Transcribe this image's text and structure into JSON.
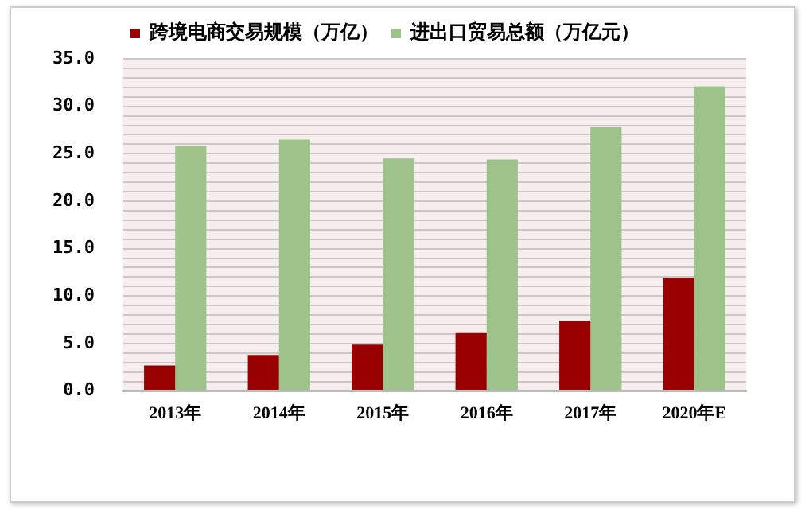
{
  "chart_data": {
    "type": "bar",
    "categories": [
      "2013年",
      "2014年",
      "2015年",
      "2016年",
      "2017年",
      "2020年E"
    ],
    "series": [
      {
        "name": "跨境电商交易规模（万亿）",
        "color": "#990000",
        "values": [
          2.7,
          3.8,
          4.9,
          6.1,
          7.4,
          11.9
        ]
      },
      {
        "name": "进出口贸易总额（万亿元）",
        "color": "#9dc38b",
        "values": [
          25.8,
          26.5,
          24.5,
          24.4,
          27.8,
          32.1
        ]
      }
    ],
    "ylim": [
      0,
      35
    ],
    "yticks": [
      {
        "value": 0,
        "label": "0.0"
      },
      {
        "value": 1,
        "label": null
      },
      {
        "value": 2,
        "label": null
      },
      {
        "value": 3,
        "label": null
      },
      {
        "value": 4,
        "label": null
      },
      {
        "value": 5,
        "label": "5.0"
      },
      {
        "value": 6,
        "label": null
      },
      {
        "value": 7,
        "label": null
      },
      {
        "value": 8,
        "label": null
      },
      {
        "value": 9,
        "label": null
      },
      {
        "value": 10,
        "label": "10.0"
      },
      {
        "value": 11,
        "label": null
      },
      {
        "value": 12,
        "label": null
      },
      {
        "value": 13,
        "label": null
      },
      {
        "value": 14,
        "label": null
      },
      {
        "value": 15,
        "label": "15.0"
      },
      {
        "value": 16,
        "label": null
      },
      {
        "value": 17,
        "label": null
      },
      {
        "value": 18,
        "label": null
      },
      {
        "value": 19,
        "label": null
      },
      {
        "value": 20,
        "label": "20.0"
      },
      {
        "value": 21,
        "label": null
      },
      {
        "value": 22,
        "label": null
      },
      {
        "value": 23,
        "label": null
      },
      {
        "value": 24,
        "label": null
      },
      {
        "value": 25,
        "label": "25.0"
      },
      {
        "value": 26,
        "label": null
      },
      {
        "value": 27,
        "label": null
      },
      {
        "value": 28,
        "label": null
      },
      {
        "value": 29,
        "label": null
      },
      {
        "value": 30,
        "label": "30.0"
      },
      {
        "value": 31,
        "label": null
      },
      {
        "value": 32,
        "label": null
      },
      {
        "value": 33,
        "label": null
      },
      {
        "value": 34,
        "label": null
      },
      {
        "value": 35,
        "label": "35.0"
      }
    ],
    "grid": "y",
    "legend": "top"
  }
}
